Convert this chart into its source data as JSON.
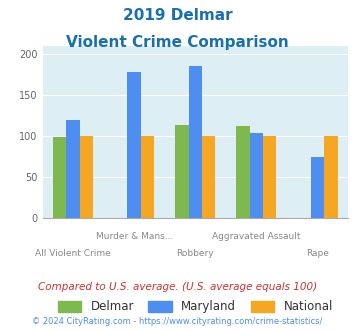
{
  "title_line1": "2019 Delmar",
  "title_line2": "Violent Crime Comparison",
  "title_color": "#1a6faf",
  "categories": [
    "All Violent Crime",
    "Murder & Mans...",
    "Robbery",
    "Aggravated Assault",
    "Rape"
  ],
  "groups": [
    "Delmar",
    "Maryland",
    "National"
  ],
  "values": {
    "Delmar": [
      99,
      0,
      113,
      112,
      0
    ],
    "Maryland": [
      120,
      178,
      186,
      104,
      75
    ],
    "National": [
      100,
      100,
      100,
      100,
      100
    ]
  },
  "colors": {
    "Delmar": "#7db94e",
    "Maryland": "#4d8ef0",
    "National": "#f5a623"
  },
  "ylim": [
    0,
    210
  ],
  "yticks": [
    0,
    50,
    100,
    150,
    200
  ],
  "background_color": "#ddeef5",
  "note": "Compared to U.S. average. (U.S. average equals 100)",
  "note_color": "#cc3333",
  "footer": "© 2024 CityRating.com - https://www.cityrating.com/crime-statistics/",
  "footer_color": "#4d8ef0",
  "bar_width": 0.22
}
